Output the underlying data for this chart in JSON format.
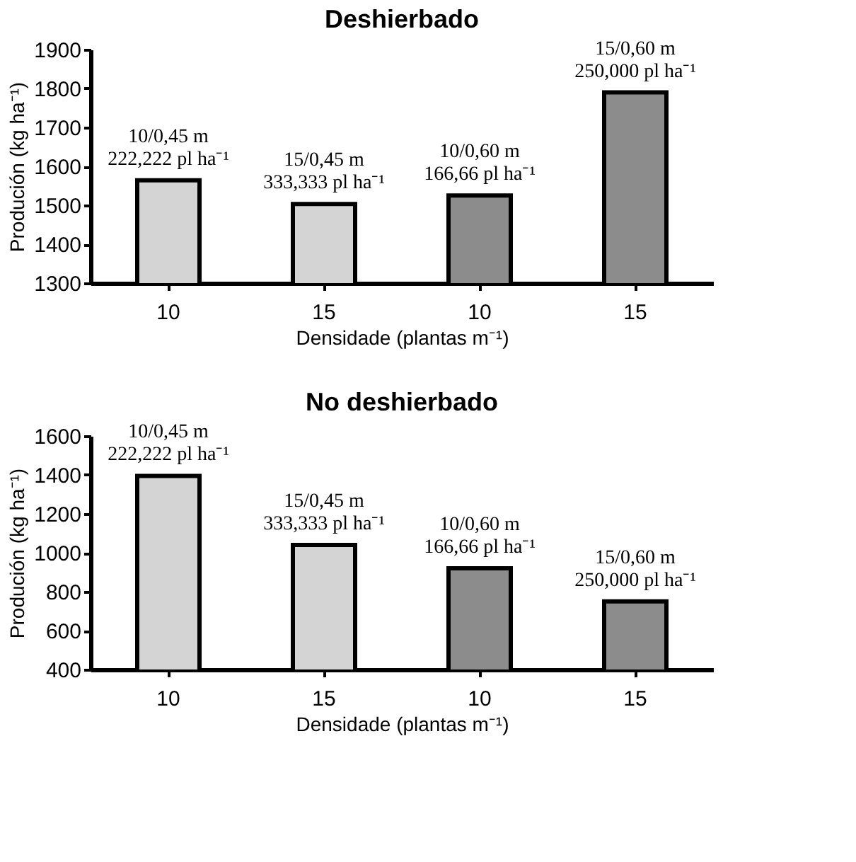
{
  "chart_data": [
    {
      "type": "bar",
      "title": "Deshierbado",
      "xlabel": "Densidade (plantas m⁻¹)",
      "ylabel": "Produción (kg ha⁻¹)",
      "categories": [
        "10",
        "15",
        "10",
        "15"
      ],
      "values": [
        1564,
        1503,
        1525,
        1790
      ],
      "colors": [
        "#d4d4d4",
        "#d4d4d4",
        "#8c8c8c",
        "#8c8c8c"
      ],
      "ylim": [
        1300,
        1900
      ],
      "yticks": [
        1300,
        1400,
        1500,
        1600,
        1700,
        1800,
        1900
      ],
      "annotations": [
        "10/0,45 m\n222,222 pl ha⁻¹",
        "15/0,45 m\n333,333 pl ha⁻¹",
        "10/0,60 m\n166,66 pl ha⁻¹",
        "15/0,60 m\n250,000 pl ha⁻¹"
      ]
    },
    {
      "type": "bar",
      "title": "No deshierbado",
      "xlabel": "Densidade (plantas m⁻¹)",
      "ylabel": "Produción (kg ha⁻¹)",
      "categories": [
        "10",
        "15",
        "10",
        "15"
      ],
      "values": [
        1395,
        1040,
        920,
        750
      ],
      "colors": [
        "#d4d4d4",
        "#d4d4d4",
        "#8c8c8c",
        "#8c8c8c"
      ],
      "ylim": [
        400,
        1600
      ],
      "yticks": [
        400,
        600,
        800,
        1000,
        1200,
        1400,
        1600
      ],
      "annotations": [
        "10/0,45 m\n222,222 pl ha⁻¹",
        "15/0,45 m\n333,333 pl ha⁻¹",
        "10/0,60 m\n166,66 pl ha⁻¹",
        "15/0,60 m\n250,000 pl ha⁻¹"
      ]
    }
  ]
}
